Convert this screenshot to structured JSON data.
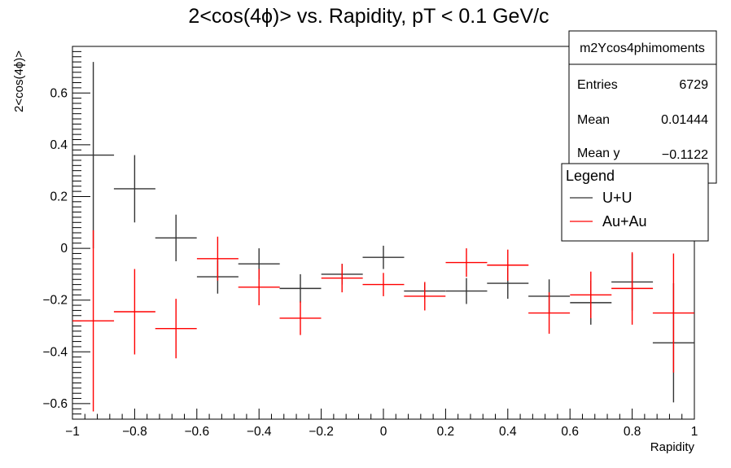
{
  "chart_data": {
    "type": "scatter",
    "title": "2<cos(4ϕ)> vs. Rapidity, pT < 0.1 GeV/c",
    "xlabel": "Rapidity",
    "ylabel": "2<cos(4ϕ)>",
    "xlim": [
      -1,
      1
    ],
    "ylim": [
      -0.66,
      0.78
    ],
    "x_ticks": [
      {
        "value": -1,
        "label": "−1"
      },
      {
        "value": -0.8,
        "label": "−0.8"
      },
      {
        "value": -0.6,
        "label": "−0.6"
      },
      {
        "value": -0.4,
        "label": "−0.4"
      },
      {
        "value": -0.2,
        "label": "−0.2"
      },
      {
        "value": 0,
        "label": "0"
      },
      {
        "value": 0.2,
        "label": "0.2"
      },
      {
        "value": 0.4,
        "label": "0.4"
      },
      {
        "value": 0.6,
        "label": "0.6"
      },
      {
        "value": 0.8,
        "label": "0.8"
      },
      {
        "value": 1,
        "label": "1"
      }
    ],
    "y_ticks": [
      {
        "value": -0.6,
        "label": "−0.6"
      },
      {
        "value": -0.4,
        "label": "−0.4"
      },
      {
        "value": -0.2,
        "label": "−0.2"
      },
      {
        "value": 0,
        "label": "0"
      },
      {
        "value": 0.2,
        "label": "0.2"
      },
      {
        "value": 0.4,
        "label": "0.4"
      },
      {
        "value": 0.6,
        "label": "0.6"
      }
    ],
    "series": [
      {
        "name": "U+U",
        "color": "#333333",
        "x": [
          -0.933,
          -0.8,
          -0.667,
          -0.533,
          -0.4,
          -0.267,
          -0.133,
          0.0,
          0.133,
          0.267,
          0.4,
          0.533,
          0.667,
          0.8,
          0.933
        ],
        "x_half_width": 0.0667,
        "y": [
          0.36,
          0.23,
          0.04,
          -0.11,
          -0.06,
          -0.155,
          -0.1,
          -0.035,
          -0.165,
          -0.165,
          -0.135,
          -0.185,
          -0.21,
          -0.13,
          -0.365
        ],
        "y_err": [
          0.36,
          0.13,
          0.09,
          0.065,
          0.06,
          0.055,
          0.04,
          0.045,
          0.03,
          0.05,
          0.06,
          0.065,
          0.085,
          0.11,
          0.23
        ]
      },
      {
        "name": "Au+Au",
        "color": "#ff0000",
        "x": [
          -0.933,
          -0.8,
          -0.667,
          -0.533,
          -0.4,
          -0.267,
          -0.133,
          0.0,
          0.133,
          0.267,
          0.4,
          0.533,
          0.667,
          0.8,
          0.933
        ],
        "x_half_width": 0.0667,
        "y": [
          -0.28,
          -0.245,
          -0.31,
          -0.04,
          -0.15,
          -0.27,
          -0.115,
          -0.14,
          -0.185,
          -0.055,
          -0.065,
          -0.25,
          -0.18,
          -0.155,
          -0.25
        ],
        "y_err": [
          0.35,
          0.165,
          0.115,
          0.085,
          0.07,
          0.065,
          0.055,
          0.045,
          0.055,
          0.055,
          0.06,
          0.08,
          0.09,
          0.14,
          0.23
        ]
      }
    ],
    "stats_box": {
      "name": "m2Ycos4phimoments",
      "rows": [
        {
          "label": "Entries",
          "value": "6729"
        },
        {
          "label": "Mean",
          "value": "0.01444"
        },
        {
          "label": "Mean y",
          "value": "−0.1122"
        }
      ]
    },
    "legend": {
      "title": "Legend",
      "placement": "top-right",
      "entries": [
        {
          "label": "U+U",
          "color": "#333333"
        },
        {
          "label": "Au+Au",
          "color": "#ff0000"
        }
      ]
    }
  }
}
